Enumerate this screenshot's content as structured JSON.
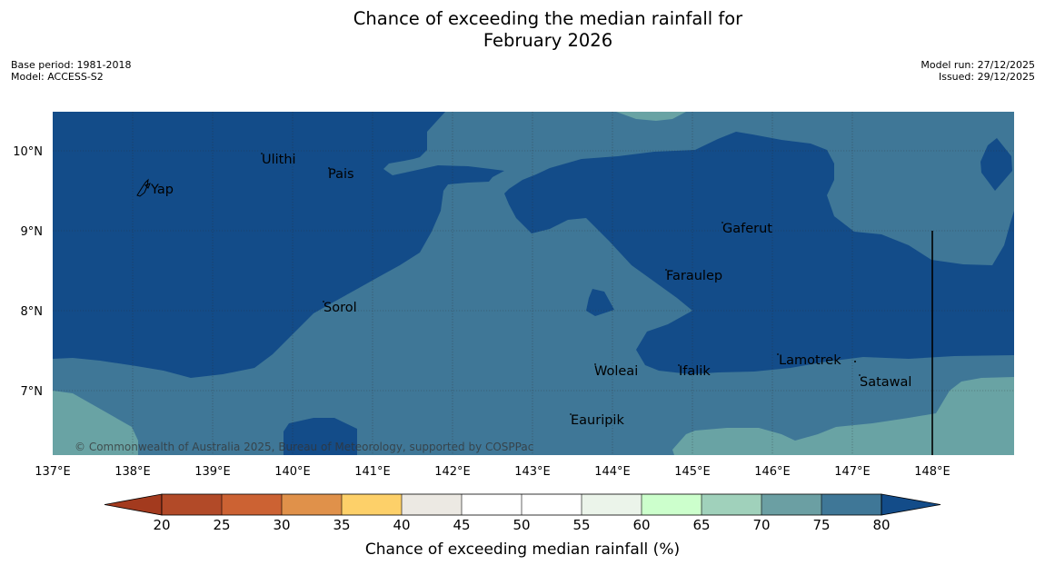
{
  "title": {
    "line1": "Chance of exceeding the median rainfall for",
    "line2": "February 2026"
  },
  "meta": {
    "base_period": "Base period: 1981-2018",
    "model": "Model: ACCESS-S2",
    "model_run": "Model run: 27/12/2025",
    "issued": "Issued: 29/12/2025"
  },
  "map": {
    "lat_labels": [
      "10°N",
      "9°N",
      "8°N",
      "7°N"
    ],
    "lon_labels": [
      "137°E",
      "138°E",
      "139°E",
      "140°E",
      "141°E",
      "142°E",
      "143°E",
      "144°E",
      "145°E",
      "146°E",
      "147°E",
      "148°E"
    ],
    "places": [
      "Yap",
      "Ulithi",
      "Pais",
      "Gaferut",
      "Faraulep",
      "Sorol",
      "Woleai",
      "Ifalik",
      "Lamotrek",
      "Satawal",
      "Eauripik"
    ],
    "copyright": "© Commonwealth of Australia 2025, Bureau of Meteorology, supported by COSPPac",
    "colors": {
      "band_80_plus": "#134c89",
      "band_75_80": "#3f7797",
      "band_70_75": "#69a3a4"
    }
  },
  "colorbar": {
    "title": "Chance of exceeding median rainfall (%)",
    "ticks": [
      "20",
      "25",
      "30",
      "35",
      "40",
      "45",
      "50",
      "55",
      "60",
      "65",
      "70",
      "75",
      "80"
    ],
    "bin_colors": [
      "#a33a1e",
      "#b24a28",
      "#cc6233",
      "#e0914a",
      "#fdd069",
      "#ece9e3",
      "#ffffff",
      "#ffffff",
      "#ebf4ea",
      "#ccffcc",
      "#a0d1bb",
      "#6b9fa3",
      "#3f7797",
      "#134c89"
    ]
  }
}
